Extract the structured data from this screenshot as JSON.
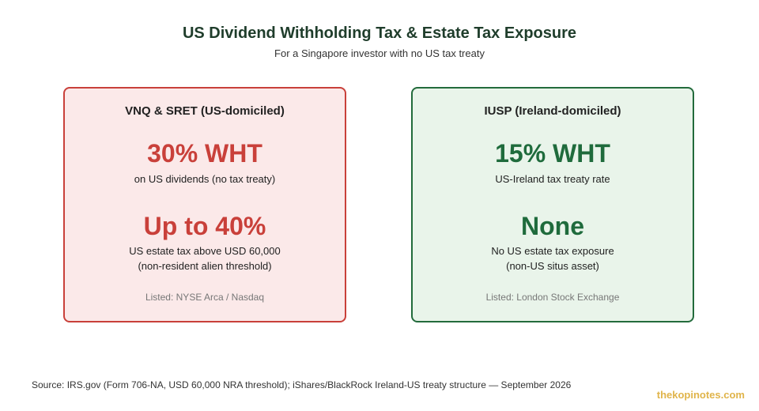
{
  "header": {
    "title": "US Dividend Withholding Tax & Estate Tax Exposure",
    "subtitle": "For a Singapore investor with no US tax treaty"
  },
  "cards": [
    {
      "heading": "VNQ & SRET (US-domiciled)",
      "wht_value": "30% WHT",
      "wht_note": "on US dividends (no tax treaty)",
      "estate_value": "Up to 40%",
      "estate_note_line1": "US estate tax above USD 60,000",
      "estate_note_line2": "(non-resident alien threshold)",
      "listed": "Listed: NYSE Arca / Nasdaq",
      "accent_color": "#c9403a",
      "background_color": "#fbe9e9"
    },
    {
      "heading": "IUSP (Ireland-domiciled)",
      "wht_value": "15% WHT",
      "wht_note": "US-Ireland tax treaty rate",
      "estate_value": "None",
      "estate_note_line1": "No US estate tax exposure",
      "estate_note_line2": "(non-US situs asset)",
      "listed": "Listed: London Stock Exchange",
      "accent_color": "#1f6b3c",
      "background_color": "#e9f4ea"
    }
  ],
  "footer": {
    "source": "Source: IRS.gov (Form 706-NA, USD 60,000 NRA threshold); iShares/BlackRock Ireland-US treaty structure — September 2026",
    "brand": "thekopinotes.com"
  }
}
